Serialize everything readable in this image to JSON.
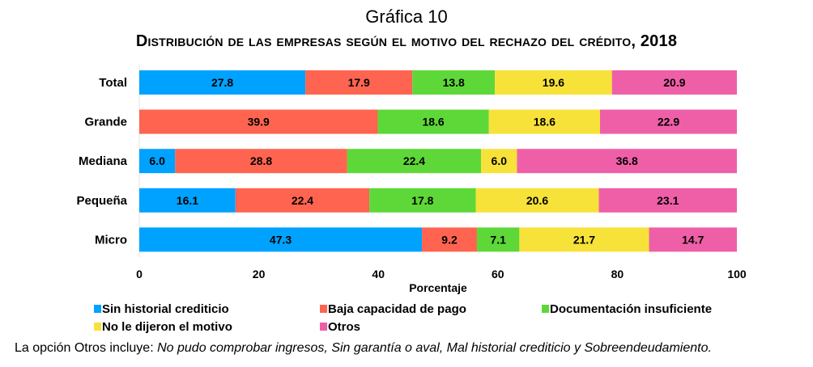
{
  "chart_data": {
    "type": "bar",
    "orientation": "horizontal",
    "stacked": true,
    "title": "Gráfica 10",
    "subtitle": "Distribución de las empresas según el motivo del rechazo del crédito, 2018",
    "xlabel": "Porcentaje",
    "ylabel": "",
    "xlim": [
      0,
      100
    ],
    "xticks": [
      "0",
      "20",
      "40",
      "60",
      "80",
      "100"
    ],
    "categories": [
      "Total",
      "Grande",
      "Mediana",
      "Pequeña",
      "Micro"
    ],
    "series": [
      {
        "name": "Sin historial crediticio",
        "color": "#00a2ff",
        "values": [
          27.8,
          0,
          6.0,
          16.1,
          47.3
        ]
      },
      {
        "name": "Baja capacidad de pago",
        "color": "#ff6450",
        "values": [
          17.9,
          39.9,
          28.8,
          22.4,
          9.2
        ]
      },
      {
        "name": "Documentación insuficiente",
        "color": "#5ed838",
        "values": [
          13.8,
          18.6,
          22.4,
          17.8,
          7.1
        ]
      },
      {
        "name": "No le dijeron el motivo",
        "color": "#f7e23a",
        "values": [
          19.6,
          18.6,
          6.0,
          20.6,
          21.7
        ]
      },
      {
        "name": "Otros",
        "color": "#ef5fa7",
        "values": [
          20.9,
          22.9,
          36.8,
          23.1,
          14.7
        ]
      }
    ],
    "legend_position": "bottom",
    "grid": false
  },
  "footnote": {
    "prefix": "La opción Otros incluye: ",
    "italic": "No pudo comprobar ingresos, Sin garantía o aval, Mal historial crediticio y Sobreendeudamiento."
  }
}
